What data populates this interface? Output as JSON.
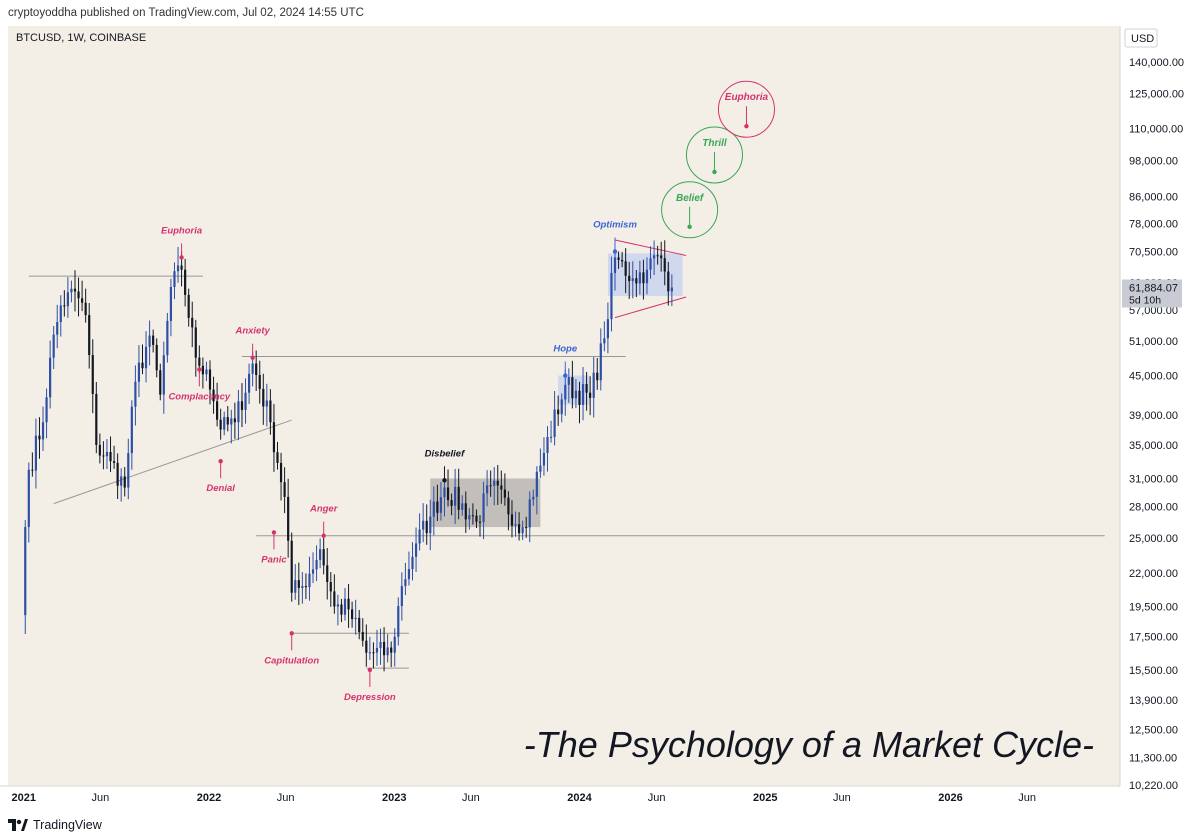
{
  "header": {
    "published_text": "cryptoyoddha published on TradingView.com, Jul 02, 2024 14:55 UTC"
  },
  "footer": {
    "brand": "TradingView"
  },
  "colors": {
    "background": "#f3efe7",
    "candle_up": "#2f4fa6",
    "candle_down": "#131722",
    "pink": "#d6336c",
    "blue": "#3b66d6",
    "green": "#3aa655",
    "box_gray": "#b8b6b1",
    "box_blue": "#c9d3ee"
  },
  "chart_data": {
    "type": "candlestick",
    "symbol_label": "BTCUSD, 1W, COINBASE",
    "currency": "USD",
    "title": "-The Psychology of a Market Cycle-",
    "y_scale": "log",
    "ylim": [
      10220,
      140000
    ],
    "y_ticks": [
      "140,000.00",
      "125,000.00",
      "110,000.00",
      "98,000.00",
      "86,000.00",
      "78,000.00",
      "70,500.00",
      "63,000.00",
      "57,000.00",
      "51,000.00",
      "45,000.00",
      "39,000.00",
      "35,000.00",
      "31,000.00",
      "28,000.00",
      "25,000.00",
      "22,000.00",
      "19,500.00",
      "17,500.00",
      "15,500.00",
      "13,900.00",
      "12,500.00",
      "11,300.00",
      "10,220.00"
    ],
    "x_ticks": [
      {
        "label": "2021",
        "x": "2021-01-01",
        "bold": true
      },
      {
        "label": "Jun",
        "x": "2021-06-01",
        "bold": false
      },
      {
        "label": "2022",
        "x": "2022-01-01",
        "bold": true
      },
      {
        "label": "Jun",
        "x": "2022-06-01",
        "bold": false
      },
      {
        "label": "2023",
        "x": "2023-01-01",
        "bold": true
      },
      {
        "label": "Jun",
        "x": "2023-06-01",
        "bold": false
      },
      {
        "label": "2024",
        "x": "2024-01-01",
        "bold": true
      },
      {
        "label": "Jun",
        "x": "2024-06-01",
        "bold": false
      },
      {
        "label": "2025",
        "x": "2025-01-01",
        "bold": true
      },
      {
        "label": "Jun",
        "x": "2025-06-01",
        "bold": false
      },
      {
        "label": "2026",
        "x": "2026-01-01",
        "bold": true
      },
      {
        "label": "Jun",
        "x": "2026-06-01",
        "bold": false
      }
    ],
    "last_price": {
      "value": 61884.07,
      "label": "61,884.07",
      "countdown": "5d 10h"
    },
    "anchors": [
      {
        "date": "2020-12-28",
        "close": 18900
      },
      {
        "date": "2021-01-04",
        "close": 26000
      },
      {
        "date": "2021-01-11",
        "close": 32000
      },
      {
        "date": "2021-02-08",
        "close": 38000
      },
      {
        "date": "2021-02-22",
        "close": 48000
      },
      {
        "date": "2021-03-15",
        "close": 58000
      },
      {
        "date": "2021-04-12",
        "close": 61000
      },
      {
        "date": "2021-05-03",
        "close": 56000
      },
      {
        "date": "2021-05-24",
        "close": 35000
      },
      {
        "date": "2021-06-21",
        "close": 33000
      },
      {
        "date": "2021-07-19",
        "close": 30000
      },
      {
        "date": "2021-08-09",
        "close": 44000
      },
      {
        "date": "2021-09-06",
        "close": 52000
      },
      {
        "date": "2021-09-27",
        "close": 42000
      },
      {
        "date": "2021-10-18",
        "close": 62000
      },
      {
        "date": "2021-11-08",
        "close": 66000
      },
      {
        "date": "2021-12-06",
        "close": 48000
      },
      {
        "date": "2021-12-27",
        "close": 46000
      },
      {
        "date": "2022-01-24",
        "close": 37000
      },
      {
        "date": "2022-02-21",
        "close": 38000
      },
      {
        "date": "2022-03-28",
        "close": 47000
      },
      {
        "date": "2022-05-02",
        "close": 38000
      },
      {
        "date": "2022-05-30",
        "close": 29000
      },
      {
        "date": "2022-06-13",
        "close": 20500
      },
      {
        "date": "2022-07-04",
        "close": 21000
      },
      {
        "date": "2022-08-08",
        "close": 24000
      },
      {
        "date": "2022-09-05",
        "close": 19500
      },
      {
        "date": "2022-10-03",
        "close": 19300
      },
      {
        "date": "2022-11-07",
        "close": 16500
      },
      {
        "date": "2022-12-26",
        "close": 16500
      },
      {
        "date": "2023-01-16",
        "close": 21000
      },
      {
        "date": "2023-02-13",
        "close": 24500
      },
      {
        "date": "2023-03-13",
        "close": 27000
      },
      {
        "date": "2023-04-10",
        "close": 30000
      },
      {
        "date": "2023-06-12",
        "close": 26500
      },
      {
        "date": "2023-07-10",
        "close": 30200
      },
      {
        "date": "2023-09-11",
        "close": 26000
      },
      {
        "date": "2023-10-23",
        "close": 34000
      },
      {
        "date": "2023-12-04",
        "close": 43500
      },
      {
        "date": "2024-01-22",
        "close": 41500
      },
      {
        "date": "2024-02-19",
        "close": 51500
      },
      {
        "date": "2024-03-11",
        "close": 69000
      },
      {
        "date": "2024-04-15",
        "close": 64000
      },
      {
        "date": "2024-05-13",
        "close": 66000
      },
      {
        "date": "2024-06-03",
        "close": 69500
      },
      {
        "date": "2024-07-01",
        "close": 61884
      }
    ],
    "annotations": [
      {
        "text": "Euphoria",
        "color": "pink",
        "date": "2021-11-08",
        "price": 69000,
        "dir": "up"
      },
      {
        "text": "Complacency",
        "color": "pink",
        "date": "2021-12-13",
        "price": 46000,
        "dir": "down"
      },
      {
        "text": "Denial",
        "color": "pink",
        "date": "2022-01-24",
        "price": 33000,
        "dir": "down"
      },
      {
        "text": "Anxiety",
        "color": "pink",
        "date": "2022-03-28",
        "price": 48000,
        "dir": "up"
      },
      {
        "text": "Panic",
        "color": "pink",
        "date": "2022-05-09",
        "price": 25500,
        "dir": "down"
      },
      {
        "text": "Anger",
        "color": "pink",
        "date": "2022-08-15",
        "price": 25200,
        "dir": "up"
      },
      {
        "text": "Capitulation",
        "color": "pink",
        "date": "2022-06-13",
        "price": 17700,
        "dir": "down"
      },
      {
        "text": "Depression",
        "color": "pink",
        "date": "2022-11-14",
        "price": 15500,
        "dir": "down"
      },
      {
        "text": "Disbelief",
        "color": "black",
        "date": "2023-04-10",
        "price": 30800,
        "dir": "up"
      },
      {
        "text": "Hope",
        "color": "blue",
        "date": "2023-12-04",
        "price": 45000,
        "dir": "up"
      },
      {
        "text": "Optimism",
        "color": "blue",
        "date": "2024-03-11",
        "price": 70500,
        "dir": "up"
      }
    ],
    "projection_circles": [
      {
        "text": "Belief",
        "color": "green",
        "date": "2024-08-05",
        "price": 82000
      },
      {
        "text": "Thrill",
        "color": "green",
        "date": "2024-09-23",
        "price": 100000
      },
      {
        "text": "Euphoria",
        "color": "pink",
        "date": "2024-11-25",
        "price": 118000
      }
    ],
    "hlines": [
      {
        "from": "2021-01-11",
        "to": "2021-12-20",
        "price": 64500
      },
      {
        "from": "2022-03-07",
        "to": "2024-04-01",
        "price": 48200
      },
      {
        "from": "2022-04-04",
        "to": "2026-11-01",
        "price": 25200
      },
      {
        "from": "2022-06-13",
        "to": "2023-01-30",
        "price": 17700
      },
      {
        "from": "2022-11-07",
        "to": "2023-01-30",
        "price": 15600
      }
    ],
    "trendlines": [
      {
        "from_date": "2021-03-01",
        "from_price": 28300,
        "to_date": "2022-06-13",
        "to_price": 38300
      },
      {
        "from_date": "2024-03-11",
        "from_price": 73500,
        "to_date": "2024-07-29",
        "to_price": 69500
      },
      {
        "from_date": "2024-03-11",
        "from_price": 55500,
        "to_date": "2024-07-29",
        "to_price": 59800
      }
    ],
    "boxes": [
      {
        "from": "2023-03-13",
        "to": "2023-10-16",
        "low": 26000,
        "high": 31000,
        "fill": "box_gray"
      },
      {
        "from": "2023-11-20",
        "to": "2024-01-22",
        "low": 40500,
        "high": 45000,
        "fill": "box_blue"
      },
      {
        "from": "2024-02-26",
        "to": "2024-07-22",
        "low": 60000,
        "high": 70000,
        "fill": "box_blue"
      }
    ]
  }
}
